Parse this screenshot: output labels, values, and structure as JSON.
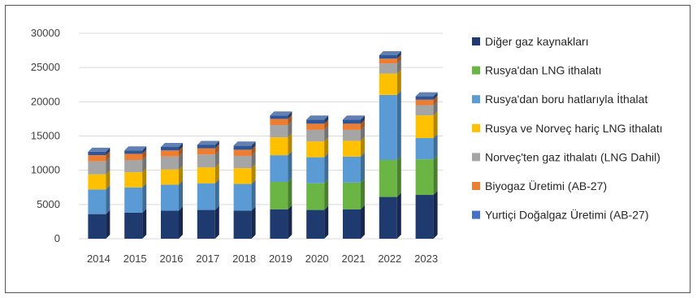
{
  "chart_data": {
    "type": "bar",
    "stacked": true,
    "title": "",
    "xlabel": "",
    "ylabel": "",
    "categories": [
      "2014",
      "2015",
      "2016",
      "2017",
      "2018",
      "2019",
      "2020",
      "2021",
      "2022",
      "2023"
    ],
    "ylim": [
      0,
      30000
    ],
    "yticks": [
      0,
      5000,
      10000,
      15000,
      20000,
      25000,
      30000
    ],
    "grid": true,
    "legend_position": "right",
    "series": [
      {
        "name": "Yurtiçi Doğalgaz Üretimi (AB-27)",
        "color": "#1F3A6E",
        "values": [
          3600,
          3800,
          4100,
          4200,
          4100,
          4300,
          4200,
          4300,
          6100,
          6400
        ]
      },
      {
        "name": "Rusya'dan LNG ithalatı",
        "color": "#6BB545",
        "values": [
          0,
          0,
          0,
          0,
          0,
          4000,
          3900,
          3900,
          5400,
          5200
        ]
      },
      {
        "name": "Rusya'dan boru hatlarıyla İthalat",
        "color": "#5B9BD5",
        "values": [
          3600,
          3700,
          3800,
          3900,
          3900,
          3900,
          3800,
          3800,
          9500,
          3100
        ]
      },
      {
        "name": "Rusya ve Norveç hariç LNG ithalatı",
        "color": "#FFC000",
        "values": [
          2200,
          2200,
          2200,
          2300,
          2300,
          2600,
          2300,
          2300,
          3100,
          3300
        ]
      },
      {
        "name": "Norveç'ten gaz ithalatı (LNG Dahil)",
        "color": "#A5A5A5",
        "values": [
          1900,
          1800,
          1900,
          1900,
          1800,
          1800,
          1700,
          1600,
          1500,
          1500
        ]
      },
      {
        "name": "Biyogaz Üretimi (AB-27)",
        "color": "#ED7D31",
        "values": [
          900,
          900,
          900,
          900,
          900,
          900,
          900,
          900,
          700,
          800
        ]
      },
      {
        "name": "Diğer gaz kaynakları",
        "color": "#2E5597",
        "values": [
          500,
          500,
          500,
          500,
          600,
          500,
          600,
          600,
          500,
          500
        ]
      }
    ],
    "legend_order": [
      "Diğer gaz kaynakları",
      "Rusya'dan LNG ithalatı",
      "Rusya'dan boru hatlarıyla İthalat",
      "Rusya ve Norveç hariç LNG ithalatı",
      "Norveç'ten gaz ithalatı (LNG Dahil)",
      "Biyogaz Üretimi (AB-27)",
      "Yurtiçi Doğalgaz Üretimi (AB-27)"
    ],
    "legend_colors": [
      "#1F3A6E",
      "#6BB545",
      "#5B9BD5",
      "#FFC000",
      "#A5A5A5",
      "#ED7D31",
      "#4472C4"
    ]
  }
}
